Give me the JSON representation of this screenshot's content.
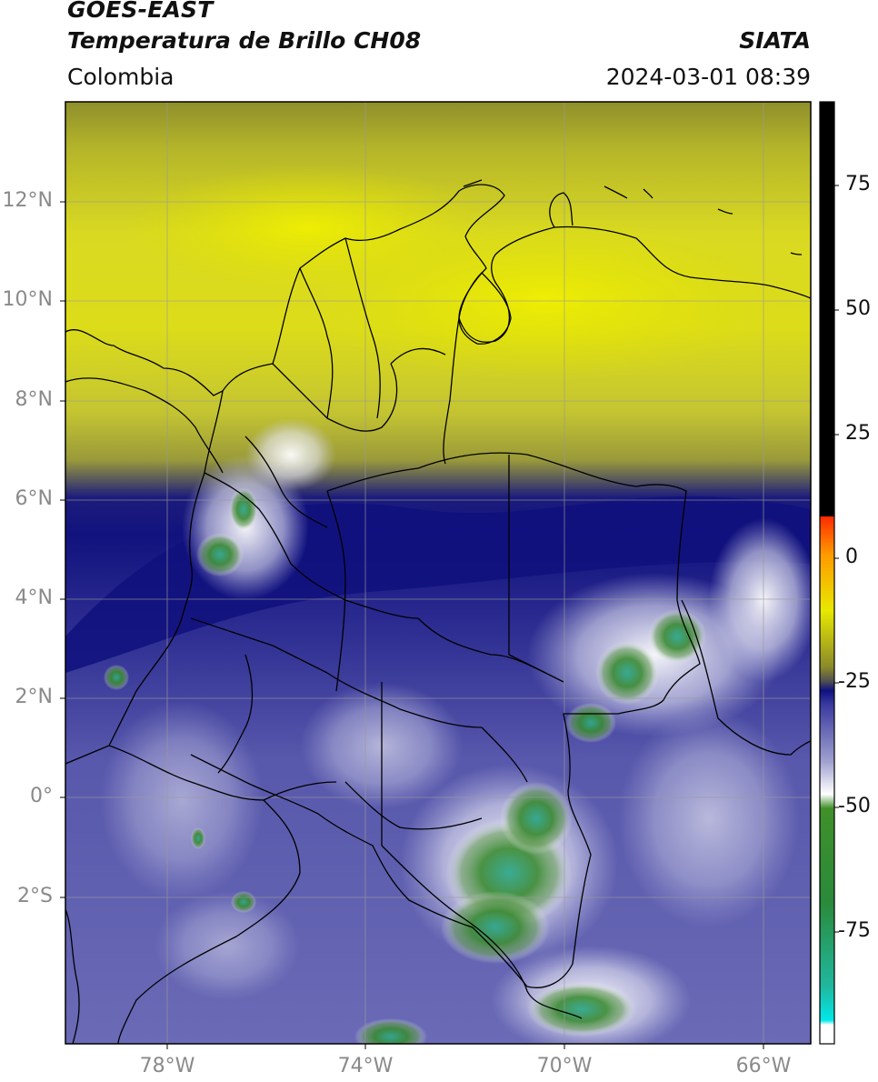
{
  "header": {
    "satellite": "GOES-EAST",
    "product": "Temperatura de Brillo CH08",
    "institution": "SIATA",
    "region": "Colombia",
    "datetime": "2024-03-01 08:39"
  },
  "map": {
    "lat_labels": [
      "12°N",
      "10°N",
      "8°N",
      "6°N",
      "4°N",
      "2°N",
      "0°",
      "2°S"
    ],
    "lat_values": [
      12,
      10,
      8,
      6,
      4,
      2,
      0,
      -2
    ],
    "lon_labels": [
      "78°W",
      "74°W",
      "70°W",
      "66°W"
    ],
    "lon_values": [
      -78,
      -74,
      -70,
      -66
    ],
    "extent": {
      "lon_min": -80,
      "lon_max": -65,
      "lat_min": -5,
      "lat_max": 14
    }
  },
  "colorbar": {
    "tick_labels": [
      "75",
      "50",
      "25",
      "0",
      "-25",
      "-50",
      "-75"
    ],
    "tick_values": [
      75,
      50,
      25,
      0,
      -25,
      -50,
      -75
    ],
    "range": [
      -100,
      90
    ],
    "colors": {
      "black": "#000000",
      "red": "#ff2a00",
      "orange": "#ff9900",
      "yellow": "#e8e800",
      "olive": "#9a9a2a",
      "darkblue": "#101080",
      "blue": "#4a4aa8",
      "white": "#ffffff",
      "green": "#3a8a2a",
      "teal": "#20b090",
      "cyan": "#00e0e0"
    }
  }
}
